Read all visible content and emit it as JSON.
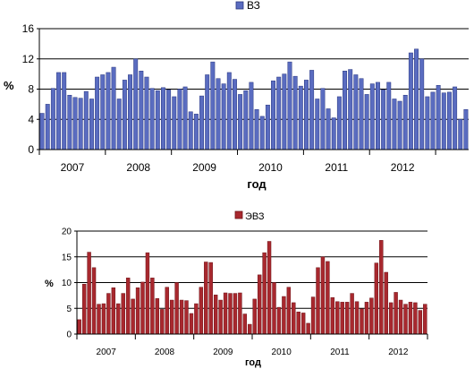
{
  "chart_data": [
    {
      "type": "bar",
      "series": [
        {
          "name": "ВЗ",
          "values": [
            4.8,
            6.0,
            8.1,
            10.2,
            10.2,
            7.2,
            6.9,
            6.8,
            7.7,
            6.7,
            9.6,
            9.9,
            10.2,
            10.9,
            6.7,
            9.2,
            9.9,
            12.0,
            10.4,
            9.6,
            8.1,
            7.8,
            8.2,
            7.9,
            7.0,
            8.0,
            8.3,
            5.0,
            4.7,
            7.1,
            9.9,
            11.6,
            9.4,
            8.7,
            10.2,
            9.3,
            7.3,
            7.8,
            8.9,
            5.3,
            4.4,
            5.9,
            9.1,
            9.6,
            10.0,
            11.6,
            9.7,
            8.4,
            9.2,
            10.5,
            6.7,
            8.1,
            5.4,
            4.2,
            7.0,
            10.4,
            10.6,
            9.9,
            9.4,
            7.3,
            8.7,
            8.9,
            7.9,
            8.9,
            6.7,
            6.4,
            7.2,
            12.8,
            13.3,
            12.0,
            7.0,
            7.6,
            8.5,
            7.5,
            7.6,
            8.3,
            4.0,
            5.3
          ]
        }
      ],
      "legend_position": "top-center",
      "x_tick_labels": [
        "2007",
        "2008",
        "2009",
        "2010",
        "2011",
        "2012"
      ],
      "y_ticks": [
        0,
        4,
        8,
        12,
        16
      ],
      "ylim": [
        0,
        16
      ],
      "ylabel": "%",
      "xlabel": "год",
      "grid": true,
      "colors": {
        "bar": "#5a6cc0",
        "bar_stroke": "#2a3780",
        "grid": "#000000"
      }
    },
    {
      "type": "bar",
      "series": [
        {
          "name": "ЭВЗ",
          "values": [
            2.8,
            9.7,
            15.9,
            12.9,
            5.8,
            5.9,
            7.9,
            9.0,
            5.9,
            7.9,
            10.9,
            6.8,
            9.0,
            10.1,
            15.8,
            10.9,
            6.9,
            4.8,
            9.1,
            6.6,
            10.0,
            6.6,
            6.5,
            4.0,
            5.9,
            9.1,
            14.0,
            13.9,
            7.6,
            6.6,
            8.0,
            7.9,
            7.9,
            8.0,
            3.9,
            1.9,
            6.8,
            11.5,
            15.8,
            18.0,
            10.0,
            5.2,
            7.3,
            9.1,
            6.1,
            4.3,
            4.1,
            2.1,
            7.2,
            12.9,
            15.0,
            14.1,
            7.1,
            6.3,
            6.2,
            6.2,
            7.9,
            6.3,
            4.9,
            6.2,
            7.0,
            13.8,
            18.2,
            12.0,
            6.1,
            8.1,
            6.6,
            5.8,
            6.2,
            6.1,
            4.6,
            5.8
          ]
        }
      ],
      "legend_position": "top-center",
      "x_tick_labels": [
        "2007",
        "2008",
        "2009",
        "2010",
        "2011",
        "2012"
      ],
      "y_ticks": [
        0,
        5,
        10,
        15,
        20
      ],
      "ylim": [
        0,
        20
      ],
      "ylabel": "%",
      "xlabel": "год",
      "grid": true,
      "colors": {
        "bar": "#a8282e",
        "bar_stroke": "#6e1418",
        "grid": "#000000"
      }
    }
  ]
}
